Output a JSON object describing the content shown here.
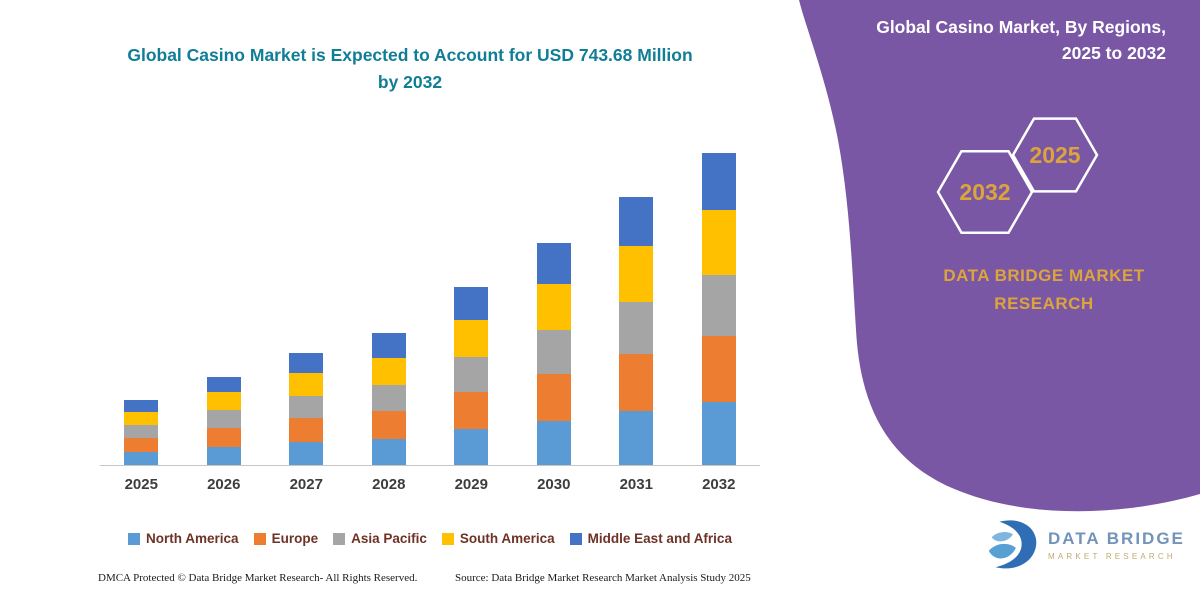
{
  "side_panel": {
    "title": "Global Casino Market, By Regions, 2025 to 2032",
    "hexagon_back": "2032",
    "hexagon_front": "2025",
    "brand_text": "DATA BRIDGE MARKET RESEARCH",
    "colors": {
      "panel": "#7A57A4",
      "accent_gold": "#DCA43B",
      "hexagon_stroke": "#ffffff"
    }
  },
  "chart_data": {
    "type": "bar",
    "stacked": true,
    "title": "Global Casino Market is Expected to Account for USD 743.68 Million by 2032",
    "title_color": "#0F7E96",
    "categories": [
      "2025",
      "2026",
      "2027",
      "2028",
      "2029",
      "2030",
      "2031",
      "2032"
    ],
    "series": [
      {
        "name": "North America",
        "color": "#5B9BD5",
        "values": [
          32,
          44,
          55,
          63,
          85,
          106,
          128,
          149.6
        ]
      },
      {
        "name": "Europe",
        "color": "#ED7D31",
        "values": [
          33,
          45,
          57,
          67,
          90,
          112,
          136,
          158.4
        ]
      },
      {
        "name": "Asia Pacific",
        "color": "#A5A5A5",
        "values": [
          30,
          41,
          52,
          61,
          82,
          103,
          124,
          144.9
        ]
      },
      {
        "name": "South America",
        "color": "#FFC000",
        "values": [
          32,
          44,
          56,
          65,
          88,
          110,
          133,
          154.8
        ]
      },
      {
        "name": "Middle East and Africa",
        "color": "#4472C4",
        "values": [
          28,
          36,
          47,
          59,
          79,
          98,
          118,
          135.98
        ]
      }
    ],
    "xlabel": "",
    "ylabel": "",
    "ylim": [
      0,
      800
    ],
    "grid": false,
    "legend_position": "bottom",
    "total_2032_usd_million": 743.68
  },
  "footer": {
    "left": "DMCA Protected © Data Bridge Market Research-  All Rights Reserved.",
    "right": "Source: Data Bridge Market Research  Market Analysis Study 2025"
  },
  "logo": {
    "name": "DATA BRIDGE",
    "subtitle": "MARKET RESEARCH"
  }
}
